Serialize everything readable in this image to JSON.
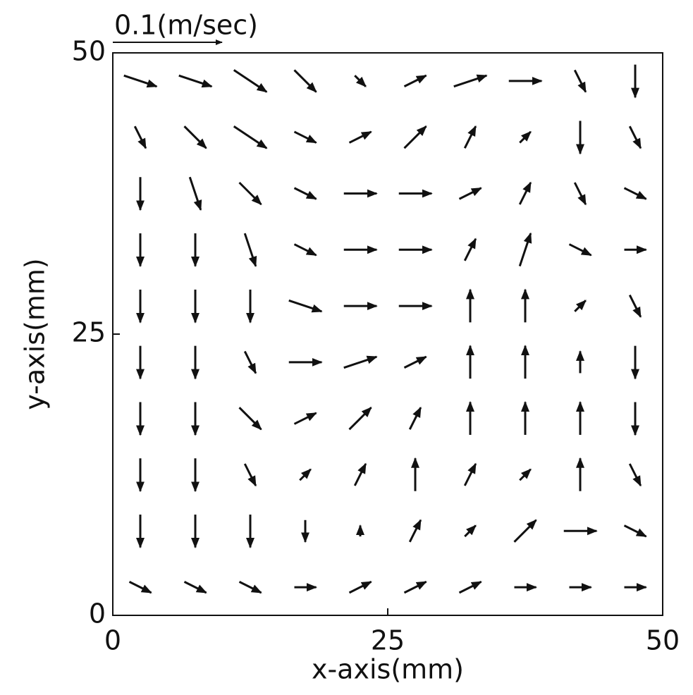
{
  "chart_data": {
    "type": "quiver",
    "xlabel": "x-axis(mm)",
    "ylabel": "y-axis(mm)",
    "key": {
      "value": 0.1,
      "label": "0.1(m/sec)"
    },
    "color": "#111111",
    "xlim": [
      0,
      50
    ],
    "ylim": [
      0,
      50
    ],
    "xticks": [
      0,
      25,
      50
    ],
    "yticks": [
      0,
      25,
      50
    ],
    "x": [
      2.5,
      7.5,
      12.5,
      17.5,
      22.5,
      27.5,
      32.5,
      37.5,
      42.5,
      47.5
    ],
    "y": [
      2.5,
      7.5,
      12.5,
      17.5,
      22.5,
      27.5,
      32.5,
      37.5,
      42.5,
      47.5
    ],
    "u": [
      [
        0.02,
        0.02,
        0.02,
        0.02,
        0.02,
        0.02,
        0.02,
        0.02,
        0.02,
        0.02
      ],
      [
        0,
        0,
        0,
        0,
        0,
        0.01,
        0.01,
        0.02,
        0.03,
        0.02
      ],
      [
        0,
        0,
        0.01,
        0.01,
        0.01,
        0,
        0.01,
        0.01,
        0,
        0.01
      ],
      [
        0,
        0,
        0.02,
        0.02,
        0.02,
        0.01,
        0,
        0,
        0,
        0
      ],
      [
        0,
        0,
        0.01,
        0.03,
        0.03,
        0.02,
        0,
        0,
        0,
        0
      ],
      [
        0,
        0,
        0,
        0.03,
        0.03,
        0.03,
        0,
        0,
        0.01,
        0.01
      ],
      [
        0,
        0,
        0.01,
        0.02,
        0.03,
        0.03,
        0.01,
        0.01,
        0.02,
        0.02
      ],
      [
        0,
        0.01,
        0.02,
        0.02,
        0.03,
        0.03,
        0.02,
        0.01,
        0.01,
        0.02
      ],
      [
        0.01,
        0.02,
        0.03,
        0.02,
        0.02,
        0.02,
        0.01,
        0.01,
        0,
        0.01
      ],
      [
        0.03,
        0.03,
        0.03,
        0.02,
        0.01,
        0.02,
        0.03,
        0.03,
        0.01,
        0
      ]
    ],
    "v": [
      [
        -0.01,
        -0.01,
        -0.01,
        0,
        0.01,
        0.01,
        0.01,
        0,
        0,
        0
      ],
      [
        -0.03,
        -0.03,
        -0.03,
        -0.02,
        0.01,
        0.02,
        0.01,
        0.02,
        0,
        -0.01
      ],
      [
        -0.03,
        -0.03,
        -0.02,
        0.01,
        0.02,
        0.03,
        0.02,
        0.01,
        0.03,
        -0.02
      ],
      [
        -0.03,
        -0.03,
        -0.02,
        0.01,
        0.02,
        0.02,
        0.03,
        0.03,
        0.03,
        -0.03
      ],
      [
        -0.03,
        -0.03,
        -0.02,
        0,
        0.01,
        0.01,
        0.03,
        0.03,
        0.02,
        -0.03
      ],
      [
        -0.03,
        -0.03,
        -0.03,
        -0.01,
        0,
        0,
        0.03,
        0.03,
        0.01,
        -0.02
      ],
      [
        -0.03,
        -0.03,
        -0.03,
        -0.01,
        0,
        0,
        0.02,
        0.03,
        -0.01,
        0
      ],
      [
        -0.03,
        -0.03,
        -0.02,
        -0.01,
        0,
        0,
        0.01,
        0.02,
        -0.02,
        -0.01
      ],
      [
        -0.02,
        -0.02,
        -0.02,
        -0.01,
        0.01,
        0.02,
        0.02,
        0.01,
        -0.03,
        -0.02
      ],
      [
        -0.01,
        -0.01,
        -0.02,
        -0.02,
        -0.01,
        0.01,
        0.01,
        0,
        -0.02,
        -0.03
      ]
    ]
  }
}
